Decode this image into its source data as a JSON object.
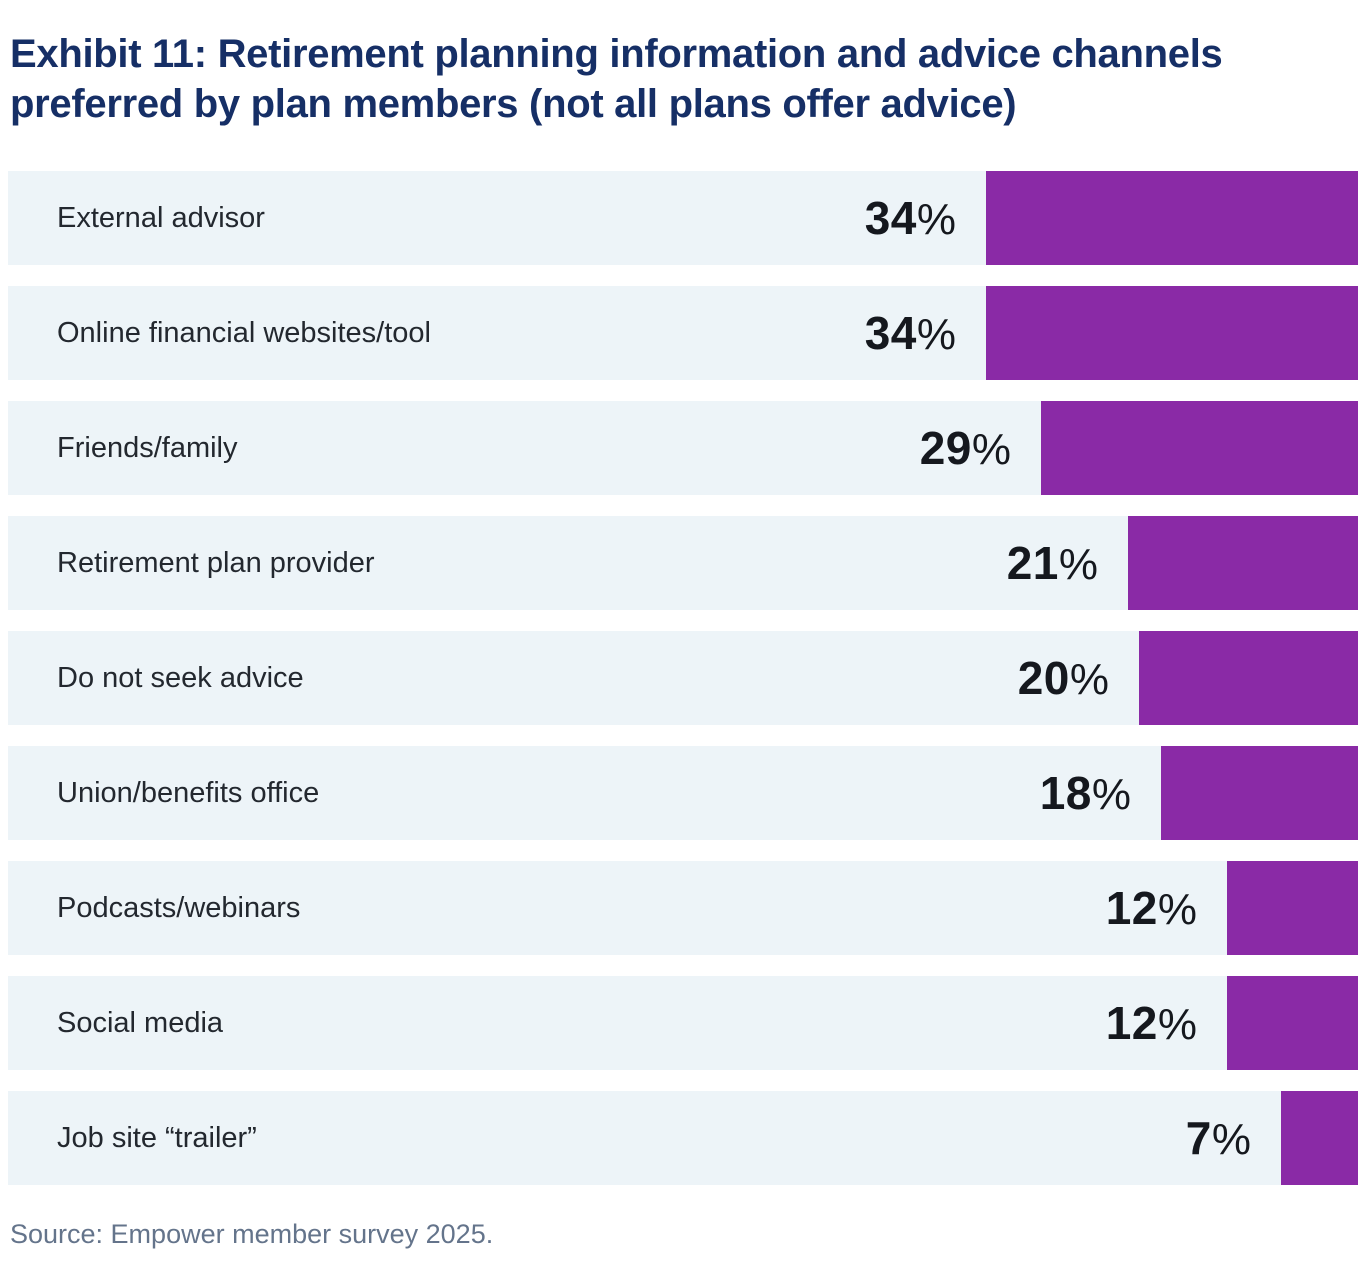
{
  "page": {
    "title": "Exhibit 11: Retirement planning information and advice channels preferred by plan members (not all plans offer advice)",
    "source": "Source: Empower member survey 2025."
  },
  "chart_data": {
    "type": "bar",
    "orientation": "horizontal",
    "bars_anchored": "right",
    "title": "Exhibit 11: Retirement planning information and advice channels preferred by plan members (not all plans offer advice)",
    "categories": [
      "External advisor",
      "Online financial websites/tool",
      "Friends/family",
      "Retirement plan provider",
      "Do not seek advice",
      "Union/benefits office",
      "Podcasts/webinars",
      "Social media",
      "Job site “trailer”"
    ],
    "values": [
      34,
      34,
      29,
      21,
      20,
      18,
      12,
      12,
      7
    ],
    "value_labels": [
      "34%",
      "34%",
      "29%",
      "21%",
      "20%",
      "18%",
      "12%",
      "12%",
      "7%"
    ],
    "unit": "%",
    "xlim": [
      0,
      34
    ],
    "grid": false,
    "legend": false,
    "source": "Source: Empower member survey 2025."
  },
  "colors": {
    "title": "#162f66",
    "label": "#23282f",
    "value": "#15181e",
    "bar": "#8a2aa6",
    "band": "#edf4f8",
    "source": "#64748b"
  }
}
